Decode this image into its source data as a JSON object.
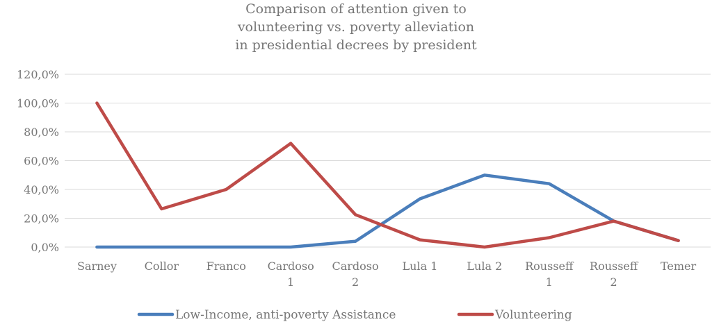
{
  "chart_data": {
    "type": "line",
    "title_lines": [
      "Comparison of attention given to",
      "volunteering vs. poverty alleviation",
      "in presidential decrees by president"
    ],
    "title": "Comparison of attention given to volunteering vs. poverty alleviation in presidential decrees by president",
    "xlabel": "",
    "ylabel": "",
    "categories": [
      [
        "Sarney"
      ],
      [
        "Collor"
      ],
      [
        "Franco"
      ],
      [
        "Cardoso",
        "1"
      ],
      [
        "Cardoso",
        "2"
      ],
      [
        "Lula 1"
      ],
      [
        "Lula 2"
      ],
      [
        "Rousseff",
        "1"
      ],
      [
        "Rousseff",
        "2"
      ],
      [
        "Temer"
      ]
    ],
    "ylim": [
      0,
      120
    ],
    "yticks": [
      0,
      20,
      40,
      60,
      80,
      100,
      120
    ],
    "ytick_labels": [
      "0,0%",
      "20,0%",
      "40,0%",
      "60,0%",
      "80,0%",
      "100,0%",
      "120,0%"
    ],
    "grid": true,
    "legend_position": "bottom",
    "series": [
      {
        "name": "Low-Income, anti-poverty Assistance",
        "color": "#4a7ebb",
        "values": [
          0,
          0,
          0,
          0,
          4,
          33.5,
          50,
          44,
          18,
          4.5
        ]
      },
      {
        "name": "Volunteering",
        "color": "#be4b48",
        "values": [
          100,
          26.5,
          40,
          72,
          22.5,
          5,
          0,
          6.5,
          18,
          4.5
        ]
      }
    ]
  }
}
